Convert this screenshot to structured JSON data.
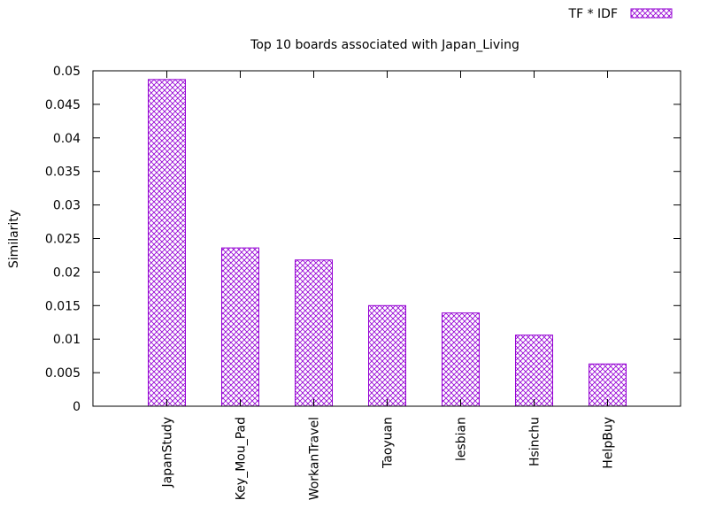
{
  "chart_data": {
    "type": "bar",
    "title": "Top 10 boards associated with Japan_Living",
    "xlabel": "",
    "ylabel": "Similarity",
    "categories": [
      "JapanStudy",
      "Key_Mou_Pad",
      "WorkanTravel",
      "Taoyuan",
      "lesbian",
      "Hsinchu",
      "HelpBuy"
    ],
    "series": [
      {
        "name": "TF * IDF",
        "values": [
          0.0487,
          0.0236,
          0.0218,
          0.015,
          0.0139,
          0.0106,
          0.0063
        ],
        "color": "#9400d3",
        "pattern": "crosshatch"
      }
    ],
    "ylim": [
      0,
      0.05
    ],
    "yticks": [
      "0",
      "0.005",
      "0.01",
      "0.015",
      "0.02",
      "0.025",
      "0.03",
      "0.035",
      "0.04",
      "0.045",
      "0.05"
    ],
    "grid": false,
    "legend_position": "top-right",
    "xtick_rotation": "vertical"
  }
}
